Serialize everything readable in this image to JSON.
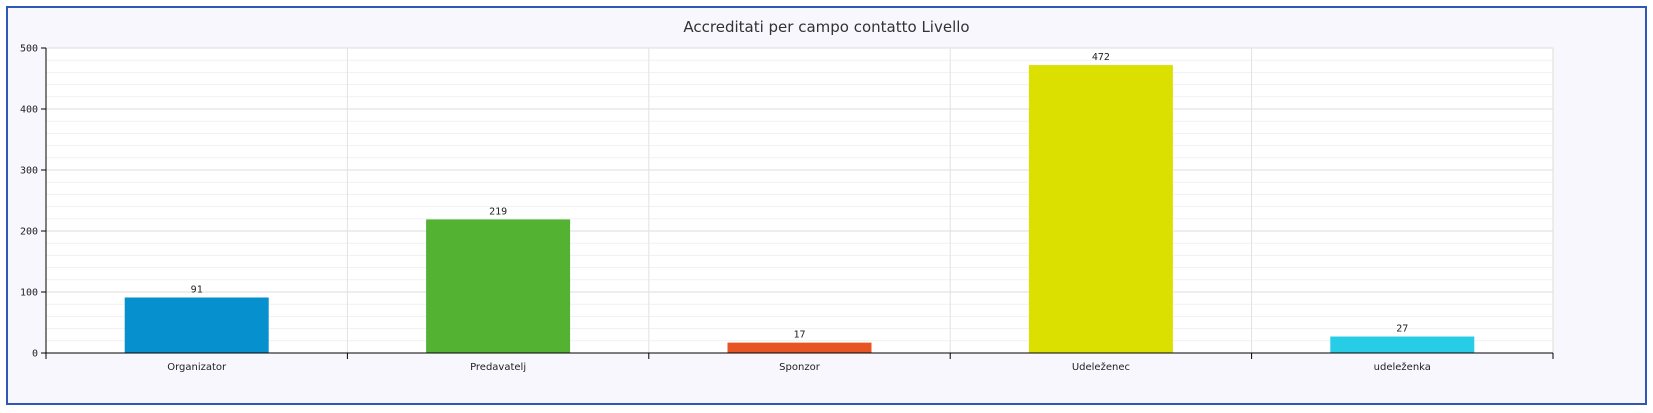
{
  "chart_data": {
    "type": "bar",
    "title": "Accreditati per campo contatto Livello",
    "xlabel": "",
    "ylabel": "",
    "categories": [
      "Organizator",
      "Predavatelj",
      "Sponzor",
      "Udeleženec",
      "udeleženka"
    ],
    "values": [
      91,
      219,
      17,
      472,
      27
    ],
    "colors": [
      "#0690cd",
      "#53b232",
      "#e65523",
      "#dce000",
      "#27cde6"
    ],
    "ylim": [
      0,
      500
    ],
    "yticks": [
      0,
      100,
      200,
      300,
      400,
      500
    ],
    "ytick_labels": [
      "0",
      "100",
      "200",
      "300",
      "400",
      "500"
    ],
    "grid": true,
    "legend": "none"
  }
}
